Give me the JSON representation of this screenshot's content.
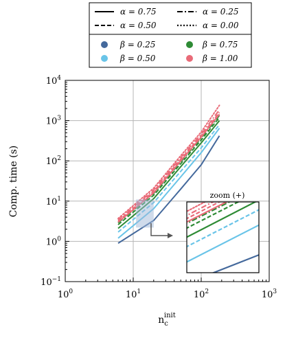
{
  "chart_data": {
    "type": "line",
    "title": "",
    "xlabel": "n",
    "xlabel_sub": "c",
    "xlabel_sup": "init",
    "ylabel": "Comp. time (s)",
    "xscale": "log",
    "yscale": "log",
    "xlim": [
      1,
      1000
    ],
    "ylim": [
      0.1,
      10000
    ],
    "grid": true,
    "x_tick_labels": [
      {
        "base": "10",
        "exp": "0",
        "value": 1
      },
      {
        "base": "10",
        "exp": "1",
        "value": 10
      },
      {
        "base": "10",
        "exp": "2",
        "value": 100
      },
      {
        "base": "10",
        "exp": "3",
        "value": 1000
      }
    ],
    "y_tick_labels": [
      {
        "base": "10",
        "exp": "−1",
        "value": 0.1
      },
      {
        "base": "10",
        "exp": "0",
        "value": 1
      },
      {
        "base": "10",
        "exp": "1",
        "value": 10
      },
      {
        "base": "10",
        "exp": "2",
        "value": 100
      },
      {
        "base": "10",
        "exp": "3",
        "value": 1000
      },
      {
        "base": "10",
        "exp": "4",
        "value": 10000
      }
    ],
    "legend_position": "top (outside)",
    "legend": {
      "alpha_entries": [
        {
          "label": "α = 0.75",
          "style": "solid"
        },
        {
          "label": "α = 0.25",
          "style": "dashdot"
        },
        {
          "label": "α = 0.50",
          "style": "dashed"
        },
        {
          "label": "α = 0.00",
          "style": "dotted"
        }
      ],
      "beta_entries": [
        {
          "label": "β = 0.25",
          "color": "#44699c"
        },
        {
          "label": "β = 0.75",
          "color": "#2e8b35"
        },
        {
          "label": "β = 0.50",
          "color": "#69c4e8"
        },
        {
          "label": "β = 1.00",
          "color": "#e96b78"
        }
      ]
    },
    "zoom_title": "zoom (+)",
    "series": [
      {
        "beta": "0.25",
        "alpha": "0.75",
        "color": "#44699c",
        "dash": "solid",
        "x": [
          6,
          20,
          50,
          100,
          185
        ],
        "y": [
          0.9,
          3.3,
          20,
          80,
          420
        ]
      },
      {
        "beta": "0.50",
        "alpha": "0.75",
        "color": "#69c4e8",
        "dash": "solid",
        "x": [
          6,
          20,
          50,
          100,
          185
        ],
        "y": [
          1.2,
          6.5,
          40,
          160,
          650
        ]
      },
      {
        "beta": "0.50",
        "alpha": "0.50",
        "color": "#69c4e8",
        "dash": "dashed",
        "x": [
          6,
          20,
          50,
          100,
          185
        ],
        "y": [
          1.7,
          9.2,
          55,
          210,
          800
        ]
      },
      {
        "beta": "0.75",
        "alpha": "0.75",
        "color": "#2e8b35",
        "dash": "solid",
        "x": [
          6,
          20,
          50,
          100,
          185
        ],
        "y": [
          2.1,
          11.5,
          72,
          280,
          1000
        ]
      },
      {
        "beta": "0.75",
        "alpha": "0.50",
        "color": "#2e8b35",
        "dash": "dashed",
        "x": [
          6,
          20,
          50,
          100,
          185
        ],
        "y": [
          2.6,
          14,
          85,
          330,
          1200
        ]
      },
      {
        "beta": "0.75",
        "alpha": "0.25",
        "color": "#2e8b35",
        "dash": "dashdot",
        "x": [
          6,
          20,
          50,
          100,
          185
        ],
        "y": [
          2.9,
          15.5,
          95,
          370,
          1350
        ]
      },
      {
        "beta": "1.00",
        "alpha": "0.75",
        "color": "#e96b78",
        "dash": "solid",
        "x": [
          6,
          20,
          50,
          100,
          185
        ],
        "y": [
          3.0,
          16,
          100,
          390,
          1450
        ]
      },
      {
        "beta": "1.00",
        "alpha": "0.50",
        "color": "#e96b78",
        "dash": "dashed",
        "x": [
          6,
          20,
          50,
          100,
          185
        ],
        "y": [
          3.2,
          17.5,
          110,
          420,
          1600
        ]
      },
      {
        "beta": "1.00",
        "alpha": "0.25",
        "color": "#e96b78",
        "dash": "dashdot",
        "x": [
          6,
          20,
          50,
          100,
          185
        ],
        "y": [
          3.4,
          19,
          120,
          460,
          1850
        ]
      },
      {
        "beta": "1.00",
        "alpha": "0.00",
        "color": "#e96b78",
        "dash": "dotted",
        "x": [
          6,
          20,
          50,
          100,
          185
        ],
        "y": [
          3.7,
          21,
          135,
          520,
          2400
        ]
      }
    ],
    "zoom_region": {
      "xlim": [
        11,
        20
      ],
      "ylim": [
        2.2,
        11
      ]
    }
  }
}
